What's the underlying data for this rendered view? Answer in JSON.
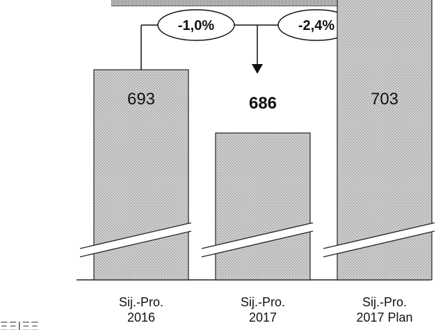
{
  "chart_data": {
    "type": "bar",
    "categories": [
      [
        "Sij.-Pro.",
        "2016"
      ],
      [
        "Sij.-Pro.",
        "2017"
      ],
      [
        "Sij.-Pro.",
        "2017 Plan"
      ]
    ],
    "values": [
      693,
      686,
      703
    ],
    "value_labels": [
      "693",
      "686",
      "703"
    ],
    "highlighted_index": 1,
    "axis_break": true,
    "comparisons": [
      {
        "from_index": 0,
        "to_index": 1,
        "label": "-1,0%"
      },
      {
        "from_index": 2,
        "to_index": 1,
        "label": "-2,4%"
      }
    ],
    "title": "",
    "xlabel": "",
    "ylabel": "",
    "grid": false,
    "colors": {
      "bar_fill": "#c8c8c8",
      "bar_stroke": "#222222",
      "text": "#111111"
    }
  },
  "footer_scrap": "ΞΞΙΞΞ"
}
